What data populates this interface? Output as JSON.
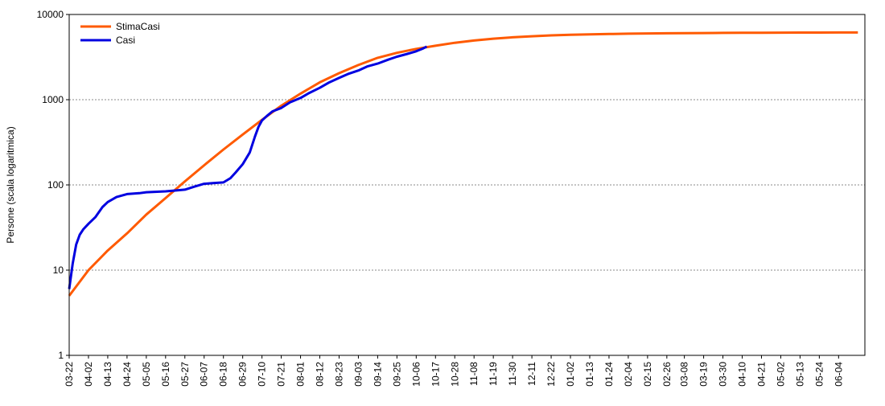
{
  "chart_data": {
    "type": "line",
    "title": "",
    "xlabel": "",
    "ylabel": "Persone (scala logaritmica)",
    "yscale": "log",
    "ylim": [
      1,
      10000
    ],
    "yticks": [
      "1",
      "10",
      "100",
      "1000",
      "10000"
    ],
    "grid": "horizontal dashed",
    "legend": {
      "position": "top-left"
    },
    "xlim": [
      "03-22",
      "06-15"
    ],
    "xticks": [
      "03-22",
      "04-02",
      "04-13",
      "04-24",
      "05-05",
      "05-16",
      "05-27",
      "06-07",
      "06-18",
      "06-29",
      "07-10",
      "07-21",
      "08-01",
      "08-12",
      "08-23",
      "09-03",
      "09-14",
      "09-25",
      "10-06",
      "10-17",
      "10-28",
      "11-08",
      "11-19",
      "11-30",
      "12-11",
      "12-22",
      "01-02",
      "01-13",
      "01-24",
      "02-04",
      "02-15",
      "02-26",
      "03-08",
      "03-19",
      "03-30",
      "04-10",
      "04-21",
      "05-02",
      "05-13",
      "05-24",
      "06-04"
    ],
    "series": [
      {
        "name": "StimaCasi",
        "color": "#ff5a00",
        "x": [
          "03-22",
          "04-02",
          "04-13",
          "04-24",
          "05-05",
          "05-16",
          "05-27",
          "06-07",
          "06-18",
          "06-29",
          "07-10",
          "07-21",
          "08-01",
          "08-12",
          "08-23",
          "09-03",
          "09-14",
          "09-25",
          "10-06",
          "10-17",
          "10-28",
          "11-08",
          "11-19",
          "11-30",
          "12-11",
          "12-22",
          "01-02",
          "01-13",
          "01-24",
          "02-04",
          "02-15",
          "02-26",
          "03-08",
          "03-19",
          "03-30",
          "04-10",
          "04-21",
          "05-02",
          "05-13",
          "05-24",
          "06-04",
          "06-15"
        ],
        "values": [
          5,
          10,
          17,
          27,
          45,
          70,
          110,
          170,
          260,
          390,
          580,
          850,
          1180,
          1600,
          2050,
          2550,
          3100,
          3550,
          3950,
          4300,
          4650,
          4950,
          5200,
          5400,
          5550,
          5680,
          5780,
          5850,
          5900,
          5950,
          5990,
          6020,
          6040,
          6060,
          6080,
          6100,
          6110,
          6120,
          6130,
          6140,
          6150,
          6150
        ]
      },
      {
        "name": "Casi",
        "color": "#0000e0",
        "x": [
          "03-22",
          "03-24",
          "03-26",
          "03-28",
          "03-30",
          "04-02",
          "04-06",
          "04-10",
          "04-13",
          "04-18",
          "04-24",
          "05-01",
          "05-05",
          "05-10",
          "05-16",
          "05-22",
          "05-27",
          "06-01",
          "06-07",
          "06-12",
          "06-18",
          "06-22",
          "06-25",
          "06-29",
          "07-03",
          "07-06",
          "07-08",
          "07-10",
          "07-13",
          "07-16",
          "07-21",
          "07-26",
          "08-01",
          "08-06",
          "08-12",
          "08-17",
          "08-23",
          "08-28",
          "09-03",
          "09-08",
          "09-14",
          "09-20",
          "09-25",
          "10-01",
          "10-06",
          "10-10",
          "10-12"
        ],
        "values": [
          6,
          12,
          20,
          26,
          30,
          35,
          42,
          55,
          63,
          72,
          78,
          80,
          82,
          83,
          84,
          86,
          88,
          95,
          103,
          105,
          107,
          120,
          140,
          175,
          240,
          370,
          480,
          570,
          650,
          730,
          800,
          930,
          1050,
          1200,
          1380,
          1580,
          1800,
          2000,
          2200,
          2450,
          2650,
          2950,
          3200,
          3450,
          3700,
          4000,
          4200
        ]
      }
    ]
  }
}
